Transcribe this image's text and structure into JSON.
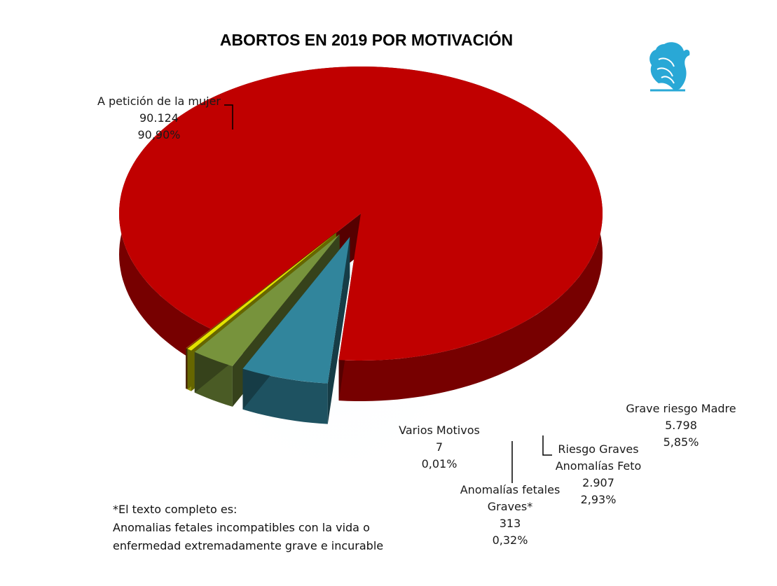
{
  "chart_data": {
    "type": "pie",
    "title": "ABORTOS EN 2019 POR MOTIVACIÓN",
    "slices": [
      {
        "label": "A petición de la mujer",
        "label_lines": [
          "A petición de la mujer"
        ],
        "value": 90124,
        "value_text": "90.124",
        "percent": 90.9,
        "percent_text": "90,90%",
        "color": "#c00000"
      },
      {
        "label": "Grave riesgo Madre",
        "label_lines": [
          "Grave riesgo Madre"
        ],
        "value": 5798,
        "value_text": "5.798",
        "percent": 5.85,
        "percent_text": "5,85%",
        "color": "#31859c"
      },
      {
        "label": "Riesgo Graves Anomalías Feto",
        "label_lines": [
          "Riesgo Graves",
          "Anomalías Feto"
        ],
        "value": 2907,
        "value_text": "2.907",
        "percent": 2.93,
        "percent_text": "2,93%",
        "color": "#77933c"
      },
      {
        "label": "Anomalías fetales Graves*",
        "label_lines": [
          "Anomalías fetales",
          "Graves*"
        ],
        "value": 313,
        "value_text": "313",
        "percent": 0.32,
        "percent_text": "0,32%",
        "color": "#e3e300"
      },
      {
        "label": "Varios Motivos",
        "label_lines": [
          "Varios Motivos"
        ],
        "value": 7,
        "value_text": "7",
        "percent": 0.01,
        "percent_text": "0,01%",
        "color": "#984807"
      }
    ],
    "legend": "none"
  },
  "footnote": {
    "lines": [
      "*El texto completo es:",
      "Anomalias fetales incompatibles con la vida o",
      "enfermedad extremadamente grave e incurable"
    ]
  },
  "logo": {
    "name": "griffin-logo",
    "color": "#29a8d6"
  }
}
